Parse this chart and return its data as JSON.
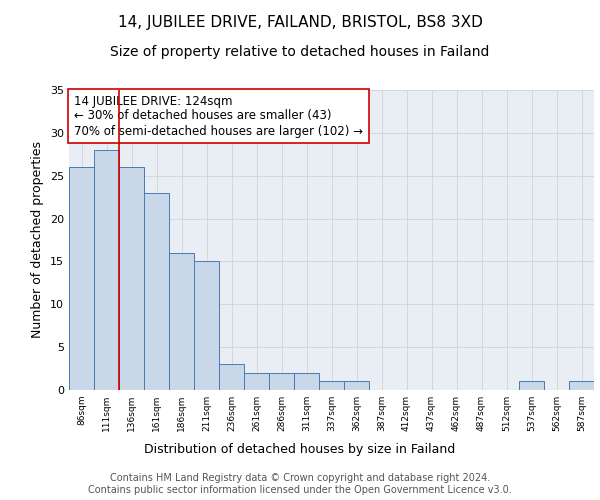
{
  "title1": "14, JUBILEE DRIVE, FAILAND, BRISTOL, BS8 3XD",
  "title2": "Size of property relative to detached houses in Failand",
  "xlabel": "Distribution of detached houses by size in Failand",
  "ylabel": "Number of detached properties",
  "bin_labels": [
    "86sqm",
    "111sqm",
    "136sqm",
    "161sqm",
    "186sqm",
    "211sqm",
    "236sqm",
    "261sqm",
    "286sqm",
    "311sqm",
    "337sqm",
    "362sqm",
    "387sqm",
    "412sqm",
    "437sqm",
    "462sqm",
    "487sqm",
    "512sqm",
    "537sqm",
    "562sqm",
    "587sqm"
  ],
  "bar_heights": [
    26,
    28,
    26,
    23,
    16,
    15,
    3,
    2,
    2,
    2,
    1,
    1,
    0,
    0,
    0,
    0,
    0,
    0,
    1,
    0,
    1
  ],
  "bar_color": "#c8d8e8",
  "bar_edge_color": "#4a7ab5",
  "grid_color": "#cccccc",
  "bg_color": "#e8eef4",
  "vline_x": 1.48,
  "vline_color": "#cc0000",
  "annotation_text": "14 JUBILEE DRIVE: 124sqm\n← 30% of detached houses are smaller (43)\n70% of semi-detached houses are larger (102) →",
  "annotation_box_color": "#ffffff",
  "annotation_box_edge": "#cc0000",
  "ylim": [
    0,
    35
  ],
  "yticks": [
    0,
    5,
    10,
    15,
    20,
    25,
    30,
    35
  ],
  "footnote": "Contains HM Land Registry data © Crown copyright and database right 2024.\nContains public sector information licensed under the Open Government Licence v3.0.",
  "title1_fontsize": 11,
  "title2_fontsize": 10,
  "xlabel_fontsize": 9,
  "ylabel_fontsize": 9,
  "annotation_fontsize": 8.5,
  "footnote_fontsize": 7
}
